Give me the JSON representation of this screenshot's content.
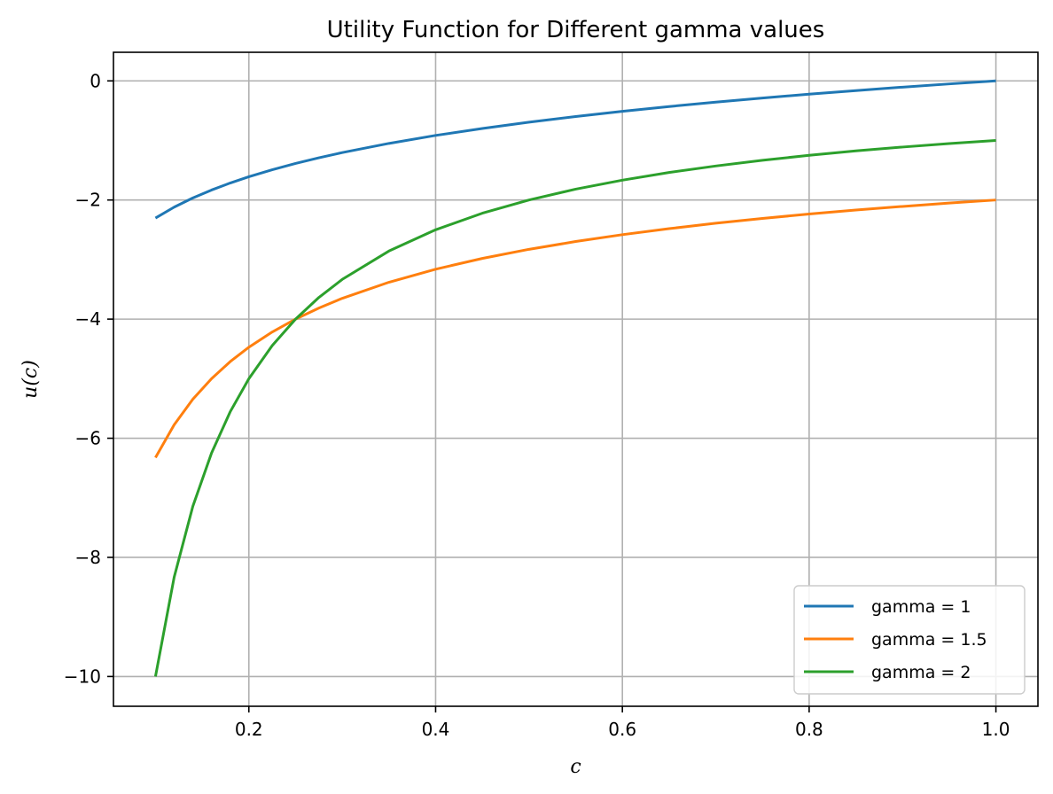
{
  "chart_data": {
    "type": "line",
    "title": "Utility Function for Different gamma values",
    "xlabel": "c",
    "ylabel": "u(c)",
    "xlim": [
      0.055,
      1.045
    ],
    "ylim": [
      -10.5,
      0.48
    ],
    "xticks": [
      0.2,
      0.4,
      0.6,
      0.8,
      1.0
    ],
    "xtick_labels": [
      "0.2",
      "0.4",
      "0.6",
      "0.8",
      "1.0"
    ],
    "yticks": [
      0,
      -2,
      -4,
      -6,
      -8,
      -10
    ],
    "ytick_labels": [
      "0",
      "−2",
      "−4",
      "−6",
      "−8",
      "−10"
    ],
    "grid": true,
    "legend_position": "lower-right",
    "x": [
      0.1,
      0.12,
      0.14,
      0.16,
      0.18,
      0.2,
      0.225,
      0.25,
      0.275,
      0.3,
      0.35,
      0.4,
      0.45,
      0.5,
      0.55,
      0.6,
      0.65,
      0.7,
      0.75,
      0.8,
      0.85,
      0.9,
      0.95,
      1.0
    ],
    "series": [
      {
        "name": "gamma = 1",
        "color": "#1f77b4",
        "values": [
          -2.303,
          -2.12,
          -1.966,
          -1.833,
          -1.715,
          -1.609,
          -1.492,
          -1.386,
          -1.291,
          -1.204,
          -1.05,
          -0.916,
          -0.799,
          -0.693,
          -0.598,
          -0.511,
          -0.431,
          -0.357,
          -0.288,
          -0.223,
          -0.163,
          -0.105,
          -0.051,
          0.0
        ]
      },
      {
        "name": "gamma = 1.5",
        "color": "#ff7f0e",
        "values": [
          -6.325,
          -5.774,
          -5.345,
          -5.0,
          -4.714,
          -4.472,
          -4.216,
          -4.0,
          -3.814,
          -3.651,
          -3.381,
          -3.162,
          -2.981,
          -2.828,
          -2.697,
          -2.582,
          -2.481,
          -2.39,
          -2.309,
          -2.236,
          -2.169,
          -2.108,
          -2.052,
          -2.0
        ]
      },
      {
        "name": "gamma = 2",
        "color": "#2ca02c",
        "values": [
          -10.0,
          -8.333,
          -7.143,
          -6.25,
          -5.556,
          -5.0,
          -4.444,
          -4.0,
          -3.636,
          -3.333,
          -2.857,
          -2.5,
          -2.222,
          -2.0,
          -1.818,
          -1.667,
          -1.538,
          -1.429,
          -1.333,
          -1.25,
          -1.176,
          -1.111,
          -1.053,
          -1.0
        ]
      }
    ]
  }
}
